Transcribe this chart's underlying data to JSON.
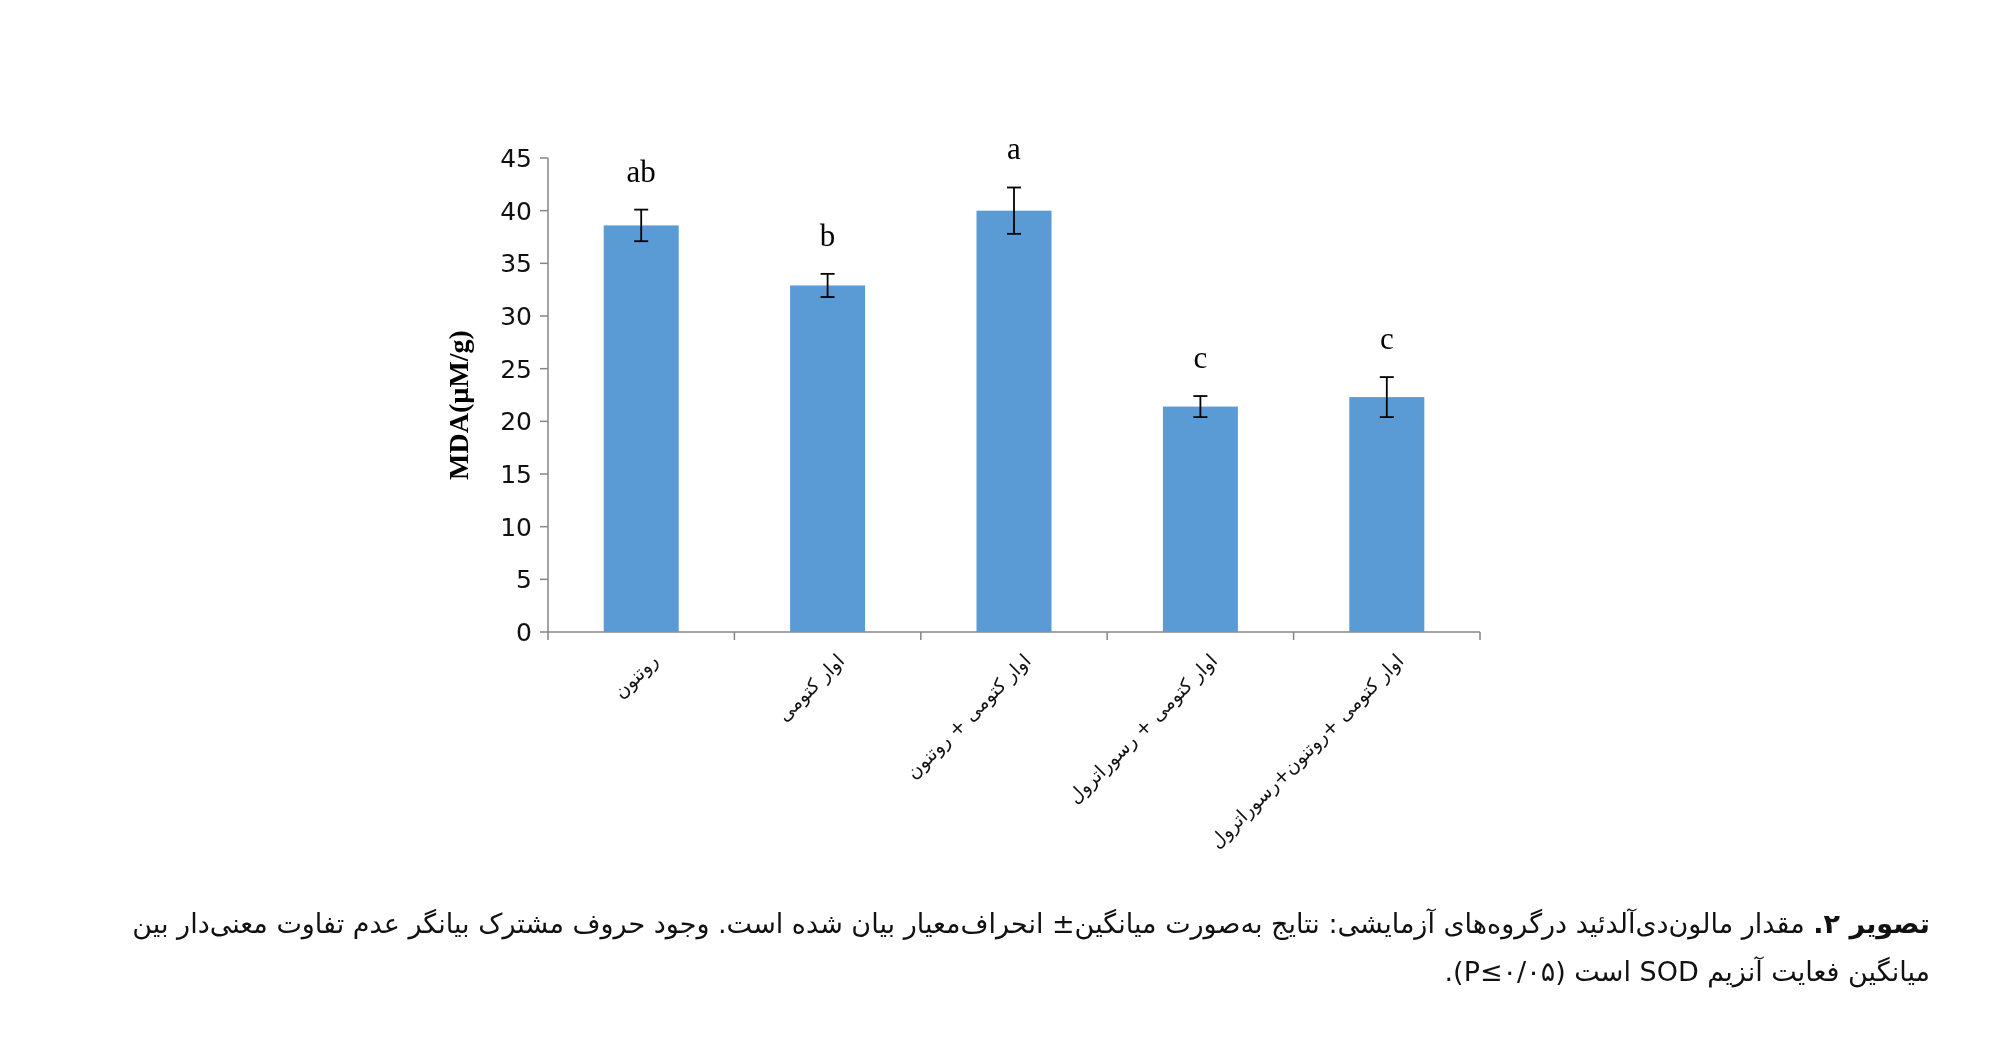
{
  "chart_data": {
    "type": "bar",
    "ylabel": "MDA(µM/g)",
    "categories": [
      "روتنون",
      "اوار کتومی",
      "اوار کتومی + روتنون",
      "اوار کتومی + رسوراترول",
      "اوار کتومی +روتنون+رسوراترول"
    ],
    "values": [
      38.6,
      32.9,
      40.0,
      21.4,
      22.3
    ],
    "errors": [
      1.5,
      1.1,
      2.2,
      1.0,
      1.9
    ],
    "color": "#5b9bd5",
    "ylim": [
      0,
      45
    ],
    "yticks": [
      0,
      5,
      10,
      15,
      20,
      25,
      30,
      35,
      40,
      45
    ],
    "grid": false,
    "annotations": [
      "ab",
      "b",
      "a",
      "c",
      "c",
      "**تصویر ۲.** مقدار مالون‌دی‌آلدئید درگروه‌های آزمایشی: نتایج به‌صورت میانگین± انحراف‌معیار بیان شده است. وجود حروف مشترک بیانگر عدم تفاوت معنی‌دار بین میانگین فعایت آنزیم SOD است (P≤۰/۰۵)."
    ]
  }
}
